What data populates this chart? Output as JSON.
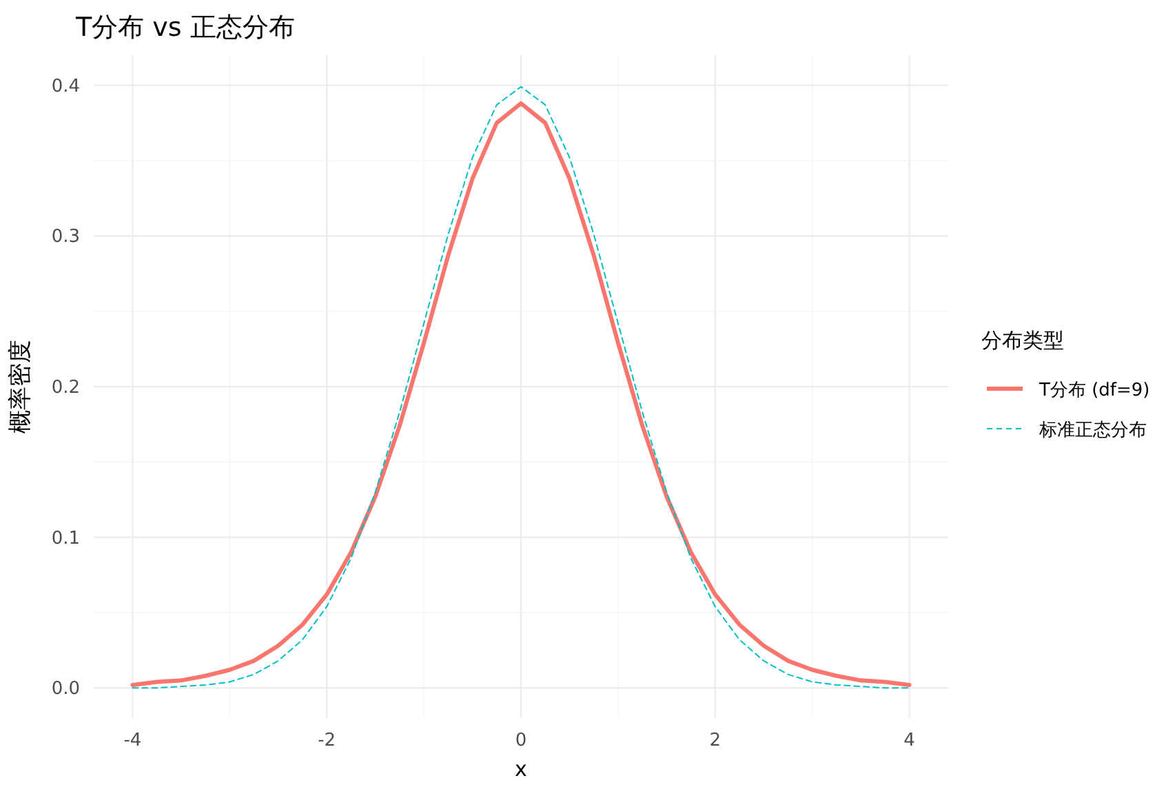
{
  "chart_data": {
    "type": "line",
    "title": "T分布 vs 正态分布",
    "xlabel": "x",
    "ylabel": "概率密度",
    "legend_title": "分布类型",
    "x": [
      -4,
      -3.75,
      -3.5,
      -3.25,
      -3,
      -2.75,
      -2.5,
      -2.25,
      -2,
      -1.75,
      -1.5,
      -1.25,
      -1,
      -0.75,
      -0.5,
      -0.25,
      0,
      0.25,
      0.5,
      0.75,
      1,
      1.25,
      1.5,
      1.75,
      2,
      2.25,
      2.5,
      2.75,
      3,
      3.25,
      3.5,
      3.75,
      4
    ],
    "series": [
      {
        "name": "T分布 (df=9)",
        "color": "#f8766d",
        "line_style": "solid",
        "values": [
          0.002,
          0.004,
          0.005,
          0.008,
          0.012,
          0.018,
          0.028,
          0.042,
          0.062,
          0.09,
          0.127,
          0.174,
          0.229,
          0.287,
          0.338,
          0.375,
          0.388,
          0.375,
          0.338,
          0.287,
          0.229,
          0.174,
          0.127,
          0.09,
          0.062,
          0.042,
          0.028,
          0.018,
          0.012,
          0.008,
          0.005,
          0.004,
          0.002
        ]
      },
      {
        "name": "标准正态分布",
        "color": "#00bfc4",
        "line_style": "dashed",
        "values": [
          0.0,
          0.0,
          0.001,
          0.002,
          0.004,
          0.009,
          0.018,
          0.032,
          0.054,
          0.086,
          0.13,
          0.183,
          0.242,
          0.301,
          0.352,
          0.387,
          0.399,
          0.387,
          0.352,
          0.301,
          0.242,
          0.183,
          0.13,
          0.086,
          0.054,
          0.032,
          0.018,
          0.009,
          0.004,
          0.002,
          0.001,
          0.0,
          0.0
        ]
      }
    ],
    "xlim": [
      -4.4,
      4.4
    ],
    "xticks": [
      -4,
      -2,
      0,
      2,
      4
    ],
    "ylim": [
      -0.02,
      0.42
    ],
    "yticks": [
      {
        "value": 0,
        "label": "0.0"
      },
      {
        "value": 0.1,
        "label": "0.1"
      },
      {
        "value": 0.2,
        "label": "0.2"
      },
      {
        "value": 0.3,
        "label": "0.3"
      },
      {
        "value": 0.4,
        "label": "0.4"
      }
    ],
    "grid": true,
    "legend": "right"
  }
}
